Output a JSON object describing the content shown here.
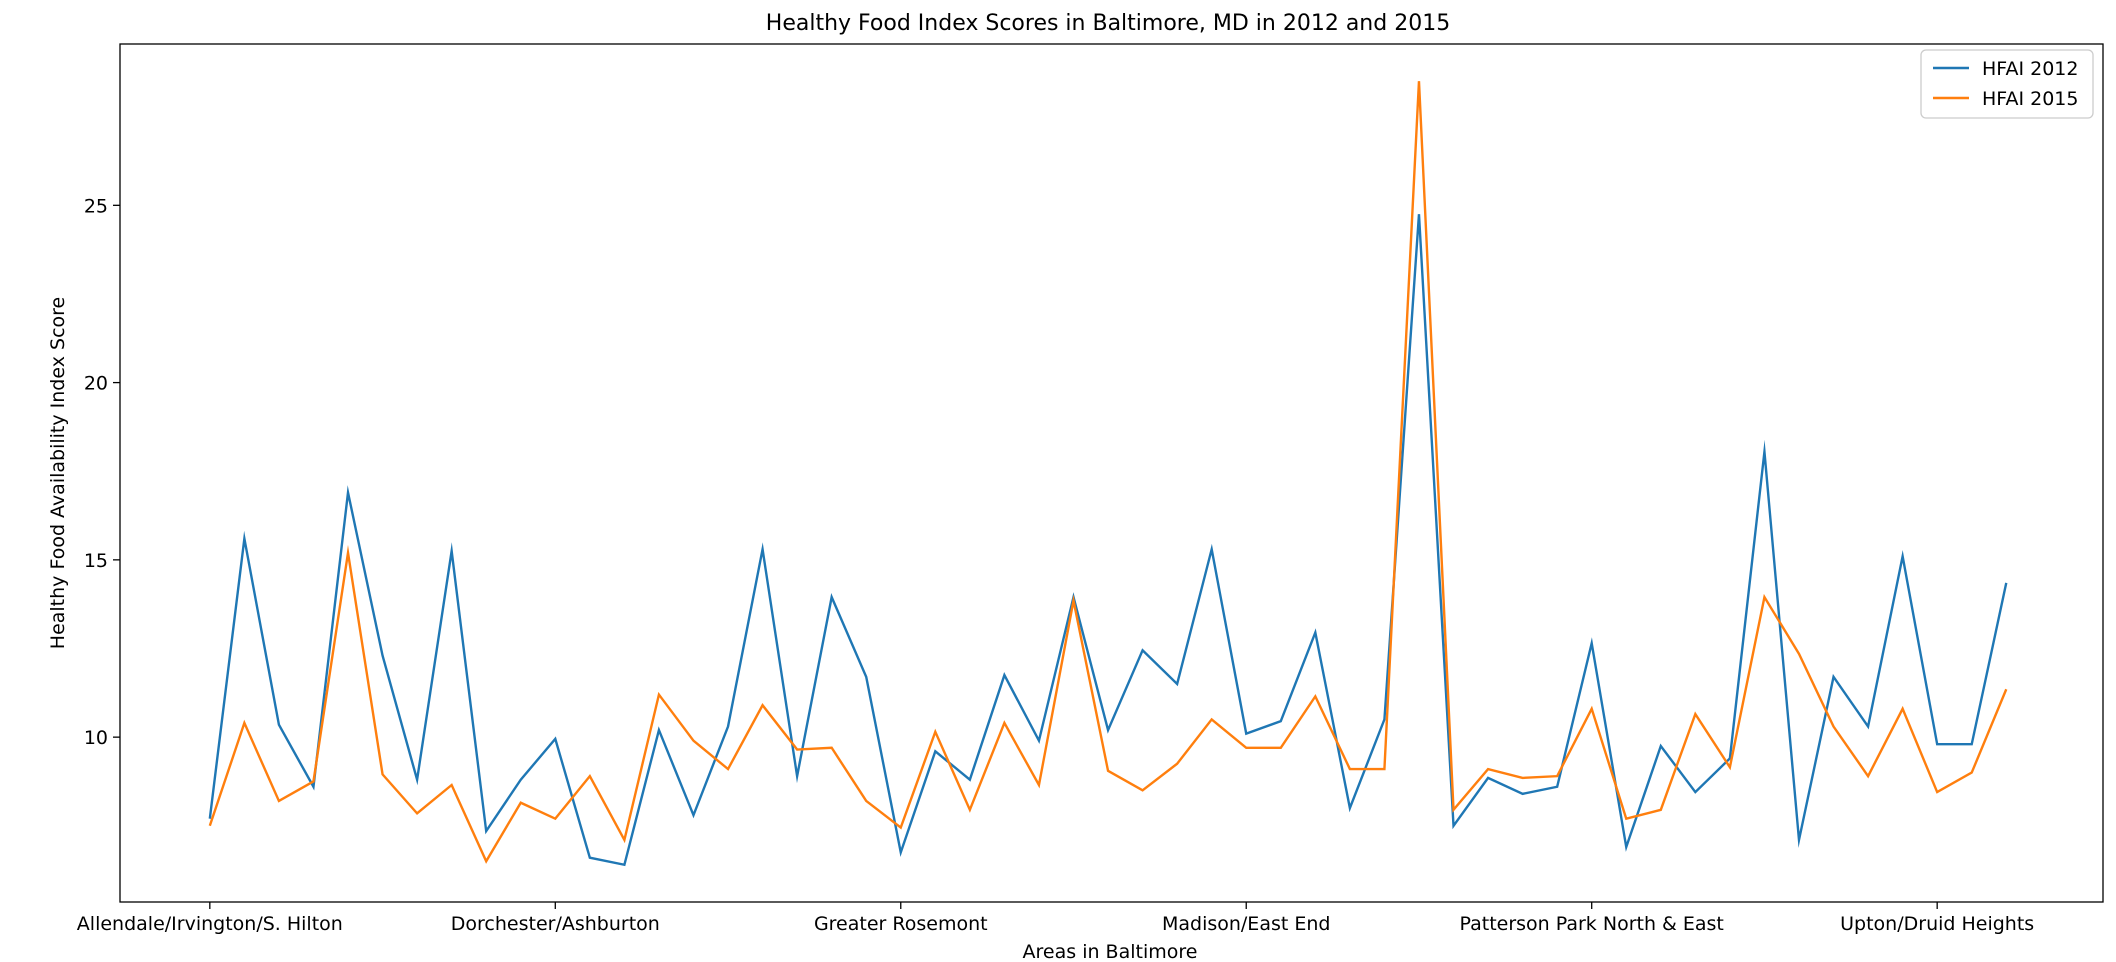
{
  "chart_data": {
    "type": "line",
    "title": "Healthy Food Index Scores in Baltimore, MD in 2012 and 2015",
    "xlabel": "Areas in Baltimore",
    "ylabel": "Healthy Food Availability Index Score",
    "x_tick_labels": [
      "Allendale/Irvington/S. Hilton",
      "Dorchester/Ashburton",
      "Greater Rosemont",
      "Madison/East End",
      "Patterson Park North & East",
      "Upton/Druid Heights"
    ],
    "x_tick_positions": [
      0,
      10,
      20,
      30,
      40,
      50
    ],
    "y_ticks": [
      10,
      15,
      20,
      25
    ],
    "xlim": [
      -2.6,
      54.8
    ],
    "ylim": [
      5.35,
      29.55
    ],
    "grid": false,
    "legend_position": "top-right",
    "series": [
      {
        "name": "HFAI 2012",
        "color": "#1f77b4",
        "values": [
          7.7,
          15.6,
          10.35,
          8.6,
          16.9,
          12.3,
          8.8,
          15.25,
          7.35,
          8.8,
          9.95,
          6.6,
          6.4,
          10.2,
          7.8,
          10.3,
          15.3,
          8.9,
          13.95,
          11.7,
          6.75,
          9.6,
          8.8,
          11.75,
          9.9,
          13.95,
          10.2,
          12.45,
          11.5,
          15.3,
          10.1,
          10.45,
          12.95,
          8.0,
          10.5,
          24.75,
          7.5,
          8.85,
          8.4,
          8.6,
          12.65,
          6.9,
          9.75,
          8.45,
          9.4,
          18.05,
          7.1,
          11.7,
          10.3,
          15.1,
          9.8,
          9.8,
          14.35
        ]
      },
      {
        "name": "HFAI 2015",
        "color": "#ff7f0e",
        "values": [
          7.5,
          10.4,
          8.2,
          8.75,
          15.2,
          8.95,
          7.85,
          8.65,
          6.5,
          8.15,
          7.7,
          8.9,
          7.1,
          11.2,
          9.9,
          9.1,
          10.9,
          9.65,
          9.7,
          8.2,
          7.45,
          10.15,
          7.95,
          10.4,
          8.65,
          13.85,
          9.05,
          8.5,
          9.25,
          10.5,
          9.7,
          9.7,
          11.15,
          9.1,
          9.1,
          28.5,
          7.95,
          9.1,
          8.85,
          8.9,
          10.8,
          7.7,
          7.95,
          10.65,
          9.15,
          13.95,
          12.35,
          10.3,
          8.9,
          10.8,
          8.45,
          9.0,
          11.35
        ]
      }
    ]
  }
}
